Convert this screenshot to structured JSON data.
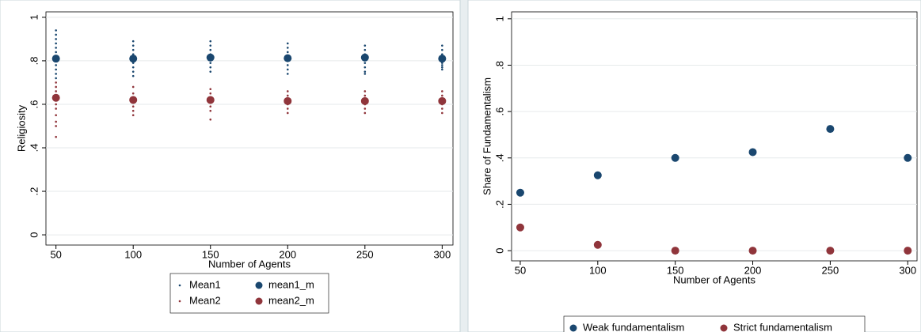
{
  "chart_data": [
    {
      "type": "scatter",
      "x_label": "Number of Agents",
      "y_label": "Religiosity",
      "xlim": [
        43.5,
        307
      ],
      "ylim": [
        -0.047,
        1.025
      ],
      "xticks": [
        50,
        100,
        150,
        200,
        250,
        300
      ],
      "yticks": [
        {
          "value": 0,
          "label": "0"
        },
        {
          "value": 0.2,
          "label": ".2"
        },
        {
          "value": 0.4,
          "label": ".4"
        },
        {
          "value": 0.6,
          "label": ".6"
        },
        {
          "value": 0.8,
          "label": ".8"
        },
        {
          "value": 1,
          "label": "1"
        }
      ],
      "grid": true,
      "legend_columns": 2,
      "series": [
        {
          "name": "Mean1",
          "color": "#1a476f",
          "marker": "small",
          "x": [
            50,
            50,
            50,
            50,
            50,
            50,
            50,
            50,
            50,
            50,
            50,
            50,
            100,
            100,
            100,
            100,
            100,
            100,
            100,
            100,
            100,
            150,
            150,
            150,
            150,
            150,
            150,
            150,
            150,
            200,
            200,
            200,
            200,
            200,
            200,
            200,
            200,
            250,
            250,
            250,
            250,
            250,
            250,
            250,
            250,
            300,
            300,
            300,
            300,
            300,
            300,
            300,
            300
          ],
          "values": [
            0.94,
            0.92,
            0.9,
            0.88,
            0.86,
            0.84,
            0.82,
            0.8,
            0.78,
            0.76,
            0.74,
            0.72,
            0.89,
            0.87,
            0.85,
            0.83,
            0.81,
            0.79,
            0.77,
            0.75,
            0.73,
            0.89,
            0.87,
            0.85,
            0.83,
            0.81,
            0.79,
            0.77,
            0.75,
            0.88,
            0.86,
            0.84,
            0.82,
            0.8,
            0.78,
            0.76,
            0.74,
            0.87,
            0.85,
            0.83,
            0.81,
            0.79,
            0.77,
            0.75,
            0.74,
            0.87,
            0.85,
            0.83,
            0.81,
            0.79,
            0.78,
            0.77,
            0.76
          ]
        },
        {
          "name": "Mean2",
          "color": "#90353b",
          "marker": "small",
          "x": [
            50,
            50,
            50,
            50,
            50,
            50,
            50,
            50,
            50,
            50,
            50,
            100,
            100,
            100,
            100,
            100,
            100,
            100,
            150,
            150,
            150,
            150,
            150,
            150,
            150,
            200,
            200,
            200,
            200,
            200,
            200,
            250,
            250,
            250,
            250,
            250,
            250,
            300,
            300,
            300,
            300,
            300,
            300
          ],
          "values": [
            0.7,
            0.68,
            0.66,
            0.64,
            0.62,
            0.6,
            0.58,
            0.55,
            0.52,
            0.5,
            0.45,
            0.68,
            0.65,
            0.63,
            0.61,
            0.59,
            0.57,
            0.55,
            0.67,
            0.65,
            0.63,
            0.61,
            0.59,
            0.57,
            0.53,
            0.66,
            0.64,
            0.62,
            0.6,
            0.58,
            0.56,
            0.66,
            0.64,
            0.62,
            0.6,
            0.58,
            0.56,
            0.66,
            0.64,
            0.62,
            0.6,
            0.58,
            0.56
          ]
        },
        {
          "name": "mean1_m",
          "color": "#1a476f",
          "marker": "large",
          "x": [
            50,
            100,
            150,
            200,
            250,
            300
          ],
          "values": [
            0.81,
            0.81,
            0.815,
            0.812,
            0.815,
            0.81
          ]
        },
        {
          "name": "mean2_m",
          "color": "#90353b",
          "marker": "large",
          "x": [
            50,
            100,
            150,
            200,
            250,
            300
          ],
          "values": [
            0.63,
            0.62,
            0.62,
            0.615,
            0.615,
            0.615
          ]
        }
      ]
    },
    {
      "type": "scatter",
      "x_label": "Number of Agents",
      "y_label": "Share of Fundamentalism",
      "xlim": [
        44.4,
        306
      ],
      "ylim": [
        -0.044,
        1.03
      ],
      "xticks": [
        50,
        100,
        150,
        200,
        250,
        300
      ],
      "yticks": [
        {
          "value": 0,
          "label": "0"
        },
        {
          "value": 0.2,
          "label": ".2"
        },
        {
          "value": 0.4,
          "label": ".4"
        },
        {
          "value": 0.6,
          "label": ".6"
        },
        {
          "value": 0.8,
          "label": ".8"
        },
        {
          "value": 1,
          "label": "1"
        }
      ],
      "grid": true,
      "legend_columns": 2,
      "series": [
        {
          "name": "Weak fundamentalism",
          "color": "#1a476f",
          "marker": "large",
          "x": [
            50,
            100,
            150,
            200,
            250,
            300
          ],
          "values": [
            0.25,
            0.325,
            0.4,
            0.425,
            0.525,
            0.4
          ]
        },
        {
          "name": "Strict fundamentalism",
          "color": "#90353b",
          "marker": "large",
          "x": [
            50,
            100,
            150,
            200,
            250,
            300
          ],
          "values": [
            0.1,
            0.025,
            0,
            0,
            0,
            0
          ]
        }
      ]
    }
  ]
}
